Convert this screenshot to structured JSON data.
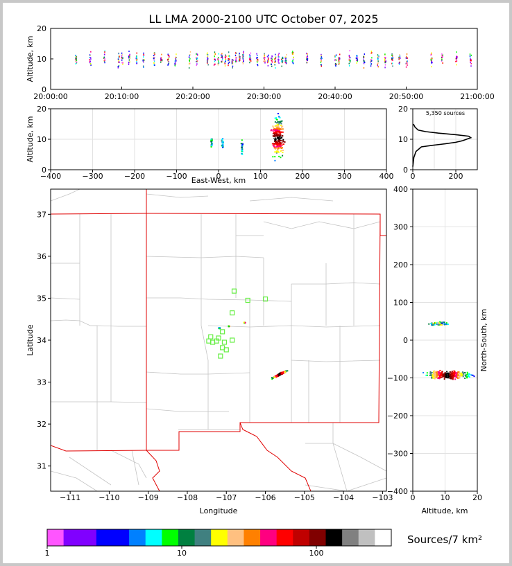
{
  "title": "LL LMA 2000-2100 UTC October 07, 2025",
  "chart_data": [
    {
      "type": "scatter",
      "panel": "altitude-time",
      "ylabel": "Altitude, km",
      "ylim": [
        0,
        20
      ],
      "yticks": [
        "0",
        "10",
        "20"
      ],
      "xticks": [
        "20:00:00",
        "20:10:00",
        "20:20:00",
        "20:30:00",
        "20:40:00",
        "20:50:00",
        "21:00:00"
      ],
      "activity_minutes": [
        3.5,
        5.5,
        7.5,
        9.5,
        10,
        11,
        12,
        13,
        14.5,
        15.5,
        16.5,
        17.5,
        19.5,
        20.5,
        22,
        23,
        23.5,
        24,
        24.5,
        25,
        25.5,
        26,
        26.5,
        27,
        28,
        29,
        30,
        30.5,
        31,
        31.5,
        32,
        32.5,
        33,
        34,
        36,
        38,
        40,
        40.5,
        42,
        43,
        44,
        45,
        46,
        47,
        48,
        49,
        50,
        53.5,
        55,
        57,
        59
      ]
    },
    {
      "type": "scatter",
      "panel": "altitude-east-west",
      "xlabel": "East-West, km",
      "ylabel": "Altitude, km",
      "xlim": [
        -400,
        400
      ],
      "ylim": [
        0,
        20
      ],
      "xticks": [
        "−400",
        "−300",
        "−200",
        "−100",
        "0",
        "100",
        "200",
        "300",
        "400"
      ],
      "yticks": [
        "0",
        "10",
        "20"
      ],
      "clusters": [
        {
          "x": -18,
          "ymin": 7,
          "ymax": 11.5
        },
        {
          "x": 8,
          "ymin": 7,
          "ymax": 11
        },
        {
          "x": 55,
          "ymin": 4,
          "ymax": 10.5
        },
        {
          "x": 140,
          "ymin": 2,
          "ymax": 19.5
        }
      ]
    },
    {
      "type": "line",
      "panel": "altitude-histogram",
      "label": "5,350 sources",
      "xlim": [
        0,
        300
      ],
      "ylim": [
        0,
        20
      ],
      "xticks": [
        "0",
        "200"
      ],
      "yticks": [
        "0",
        "10",
        "20"
      ],
      "profile": [
        [
          0,
          1
        ],
        [
          5,
          4
        ],
        [
          15,
          6
        ],
        [
          40,
          7.5
        ],
        [
          90,
          8
        ],
        [
          150,
          8.5
        ],
        [
          200,
          9
        ],
        [
          230,
          9.5
        ],
        [
          270,
          10.5
        ],
        [
          260,
          11
        ],
        [
          200,
          11.5
        ],
        [
          120,
          12
        ],
        [
          60,
          12.5
        ],
        [
          25,
          13
        ],
        [
          10,
          14
        ],
        [
          3,
          15
        ]
      ]
    },
    {
      "type": "scatter",
      "panel": "plan-view",
      "xlabel": "Longitude",
      "ylabel": "Latitude",
      "xlim": [
        -111.5,
        -102.9
      ],
      "ylim": [
        30.4,
        37.6
      ],
      "xticks": [
        "−111",
        "−110",
        "−109",
        "−108",
        "−107",
        "−106",
        "−105",
        "−104",
        "−103"
      ],
      "yticks": [
        "31",
        "32",
        "33",
        "34",
        "35",
        "36",
        "37"
      ],
      "stations": [
        [
          -106.8,
          35.17
        ],
        [
          -106.45,
          34.95
        ],
        [
          -106.0,
          34.98
        ],
        [
          -106.85,
          34.65
        ],
        [
          -107.2,
          34.05
        ],
        [
          -107.4,
          34.08
        ],
        [
          -107.1,
          34.2
        ],
        [
          -107.45,
          33.98
        ],
        [
          -107.35,
          33.95
        ],
        [
          -107.25,
          33.98
        ],
        [
          -107.05,
          33.95
        ],
        [
          -107.1,
          33.82
        ],
        [
          -106.85,
          34.0
        ],
        [
          -107.0,
          33.77
        ],
        [
          -107.15,
          33.62
        ]
      ],
      "clusters": [
        {
          "lon": -107.2,
          "lat": 34.3
        },
        {
          "lon": -106.95,
          "lat": 34.35
        },
        {
          "lon": -106.55,
          "lat": 34.43
        },
        {
          "lon": -105.65,
          "lat": 33.2
        }
      ]
    },
    {
      "type": "scatter",
      "panel": "north-south-altitude",
      "xlabel": "Altitude, km",
      "ylabel": "North-South, km",
      "xlim": [
        0,
        20
      ],
      "ylim": [
        -400,
        400
      ],
      "xticks": [
        "0",
        "10",
        "20"
      ],
      "yticks": [
        "−400",
        "−300",
        "−200",
        "−100",
        "0",
        "100",
        "200",
        "300",
        "400"
      ],
      "clusters": [
        {
          "ns": 45,
          "altmin": 4,
          "altmax": 12
        },
        {
          "ns": -90,
          "altmin": 1,
          "altmax": 20
        }
      ]
    }
  ],
  "colorbar": {
    "label": "Sources/7 km²",
    "ticks": [
      "1",
      "10",
      "100"
    ],
    "colors": [
      "#ff55ff",
      "#8000ff",
      "#8000ff",
      "#0000ff",
      "#0000ff",
      "#0080ff",
      "#00ffff",
      "#00ff00",
      "#008040",
      "#408080",
      "#ffff00",
      "#ffc080",
      "#ff8000",
      "#ff0080",
      "#ff0000",
      "#c00000",
      "#800000",
      "#000000",
      "#808080",
      "#c0c0c0",
      "#ffffff"
    ]
  }
}
